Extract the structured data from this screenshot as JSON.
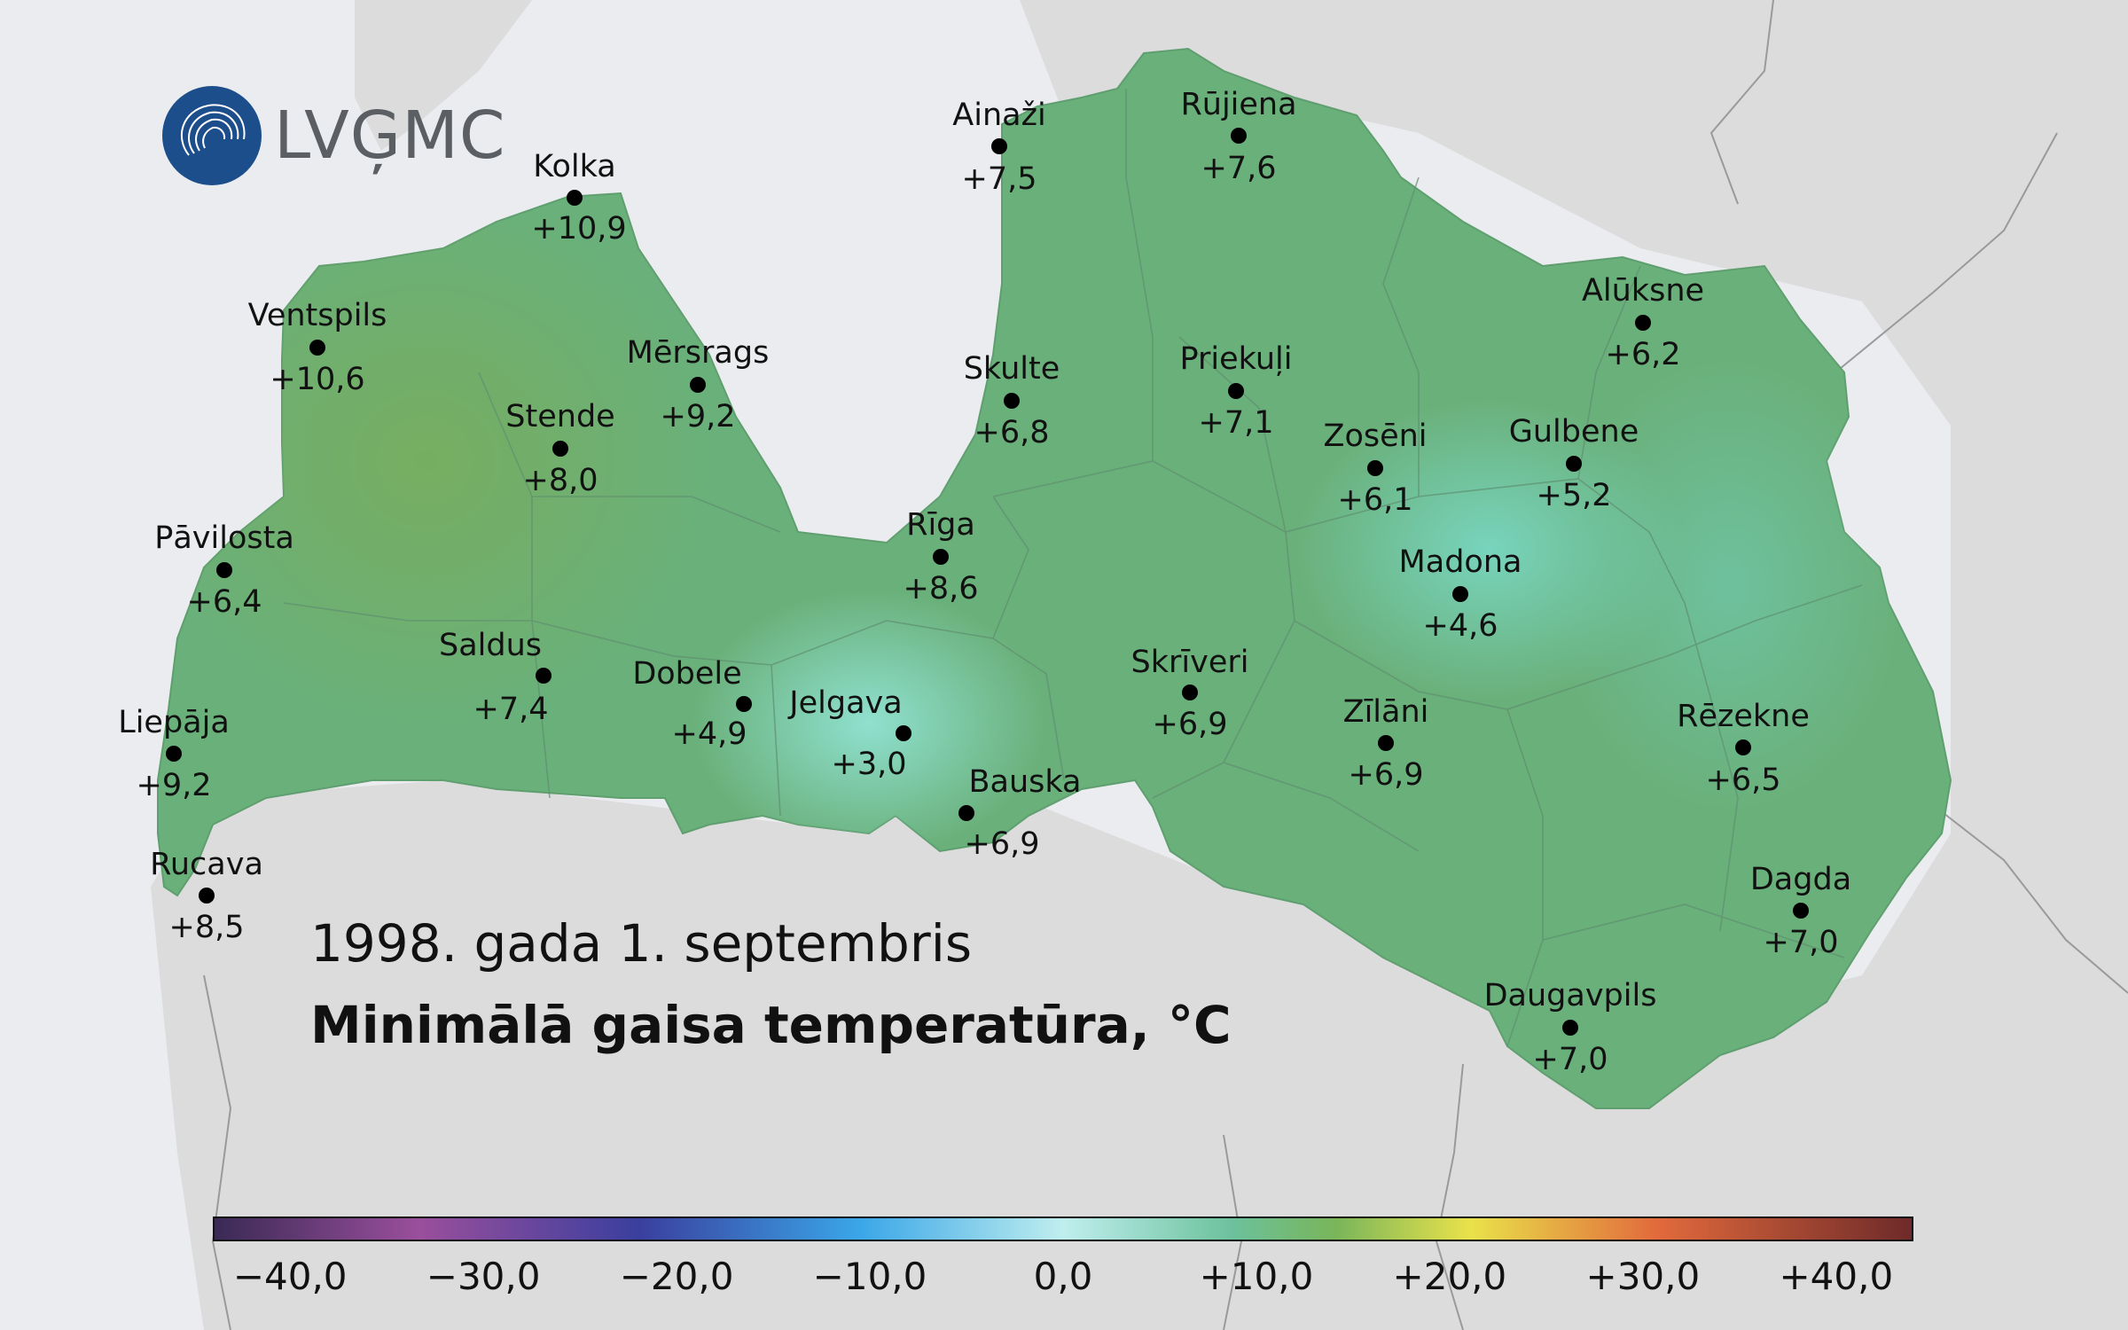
{
  "map": {
    "logo_text": "LVĢMC",
    "title_date": "1998. gada 1. septembris",
    "title_variable": "Minimālā gaisa temperatūra, °C",
    "stations": [
      {
        "name": "Ainaži",
        "value": "+7,5"
      },
      {
        "name": "Rūjiena",
        "value": "+7,6"
      },
      {
        "name": "Kolka",
        "value": "+10,9"
      },
      {
        "name": "Ventspils",
        "value": "+10,6"
      },
      {
        "name": "Mērsrags",
        "value": "+9,2"
      },
      {
        "name": "Stende",
        "value": "+8,0"
      },
      {
        "name": "Skulte",
        "value": "+6,8"
      },
      {
        "name": "Priekuļi",
        "value": "+7,1"
      },
      {
        "name": "Alūksne",
        "value": "+6,2"
      },
      {
        "name": "Zosēni",
        "value": "+6,1"
      },
      {
        "name": "Gulbene",
        "value": "+5,2"
      },
      {
        "name": "Pāvilosta",
        "value": "+6,4"
      },
      {
        "name": "Rīga",
        "value": "+8,6"
      },
      {
        "name": "Madona",
        "value": "+4,6"
      },
      {
        "name": "Saldus",
        "value": "+7,4"
      },
      {
        "name": "Dobele",
        "value": "+4,9"
      },
      {
        "name": "Jelgava",
        "value": "+3,0"
      },
      {
        "name": "Skrīveri",
        "value": "+6,9"
      },
      {
        "name": "Zīlāni",
        "value": "+6,9"
      },
      {
        "name": "Rēzekne",
        "value": "+6,5"
      },
      {
        "name": "Liepāja",
        "value": "+9,2"
      },
      {
        "name": "Bauska",
        "value": "+6,9"
      },
      {
        "name": "Rucava",
        "value": "+8,5"
      },
      {
        "name": "Dagda",
        "value": "+7,0"
      },
      {
        "name": "Daugavpils",
        "value": "+7,0"
      }
    ],
    "colorbar": {
      "ticks": [
        "−40,0",
        "−30,0",
        "−20,0",
        "−10,0",
        "0,0",
        "+10,0",
        "+20,0",
        "+30,0",
        "+40,0"
      ],
      "range": [
        -44,
        44
      ],
      "colors": [
        "#3a2a55",
        "#9a4f9c",
        "#3a3f9e",
        "#3aa6e8",
        "#bfeeee",
        "#6cc19c",
        "#79b55a",
        "#e9e24a",
        "#e26a3c",
        "#6e2a2a"
      ]
    },
    "colors": {
      "sea": "#eaecef",
      "land_outside": "#d6d6d6",
      "latvia_base": "#6ab07a",
      "west_warm": "#74ac5e",
      "cold_spot": "#7fd6c0",
      "borders": "#8a8a8a",
      "logo_blue": "#1c4e8c"
    }
  }
}
